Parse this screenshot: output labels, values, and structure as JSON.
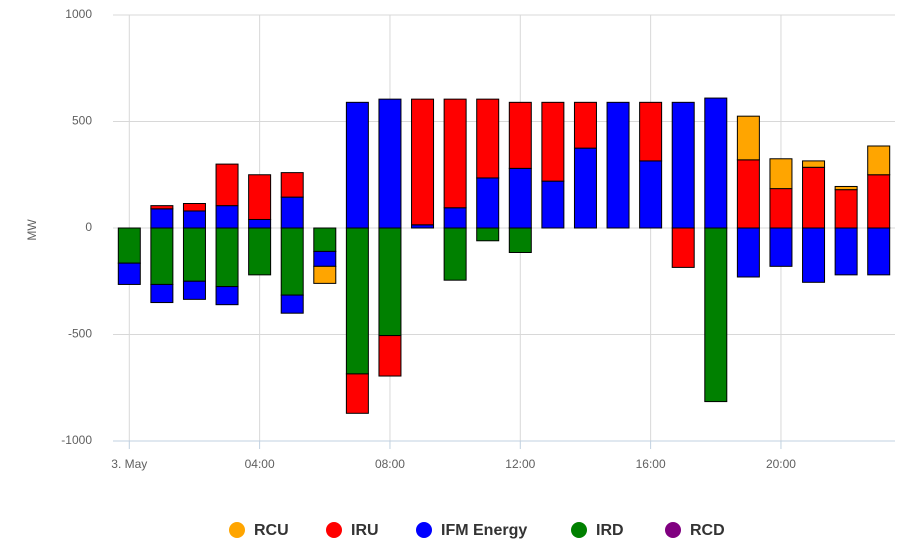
{
  "chart_data": {
    "type": "bar",
    "stacking": "normal",
    "y_label": "MW",
    "categories": [
      "3. May",
      null,
      null,
      null,
      "04:00",
      null,
      null,
      null,
      "08:00",
      null,
      null,
      null,
      "12:00",
      null,
      null,
      null,
      "16:00",
      null,
      null,
      null,
      "20:00",
      null,
      null,
      null
    ],
    "ylim": [
      -1000,
      1000
    ],
    "yticks": [
      -1000,
      -500,
      0,
      500,
      1000
    ],
    "grid": true,
    "legend": "bottom",
    "series": [
      {
        "name": "RCU",
        "color": "#ffa500",
        "values": [
          null,
          null,
          null,
          null,
          null,
          null,
          null,
          null,
          null,
          null,
          null,
          null,
          null,
          null,
          null,
          null,
          null,
          null,
          null,
          205,
          140,
          30,
          15,
          135
        ],
        "negative_values": [
          null,
          null,
          null,
          null,
          null,
          null,
          -80,
          null,
          null,
          null,
          null,
          null,
          null,
          null,
          null,
          null,
          null,
          null,
          null,
          null,
          null,
          null,
          null,
          null
        ]
      },
      {
        "name": "IRU",
        "color": "#ff0000",
        "values": [
          null,
          15,
          35,
          195,
          210,
          115,
          null,
          null,
          null,
          590,
          510,
          370,
          310,
          370,
          215,
          null,
          275,
          null,
          null,
          320,
          185,
          285,
          180,
          250
        ],
        "negative_values": [
          null,
          null,
          null,
          null,
          null,
          null,
          null,
          -185,
          -190,
          null,
          null,
          null,
          null,
          null,
          null,
          null,
          null,
          -185,
          null,
          null,
          null,
          null,
          null,
          null
        ]
      },
      {
        "name": "IFM Energy",
        "color": "#0000ff",
        "values": [
          null,
          90,
          80,
          105,
          40,
          145,
          null,
          590,
          605,
          15,
          95,
          235,
          280,
          220,
          375,
          590,
          315,
          590,
          610,
          null,
          null,
          null,
          null,
          null
        ],
        "negative_values": [
          -100,
          -85,
          -85,
          -85,
          null,
          -85,
          -70,
          null,
          null,
          null,
          null,
          null,
          null,
          null,
          null,
          null,
          null,
          null,
          null,
          -230,
          -180,
          -255,
          -220,
          -220
        ]
      },
      {
        "name": "IRD",
        "color": "#008000",
        "values": [
          null,
          null,
          null,
          null,
          null,
          null,
          null,
          null,
          null,
          null,
          null,
          null,
          null,
          null,
          null,
          null,
          null,
          null,
          null,
          null,
          null,
          null,
          null,
          null
        ],
        "negative_values": [
          -165,
          -265,
          -250,
          -275,
          -220,
          -315,
          -110,
          -685,
          -505,
          null,
          -245,
          -60,
          -115,
          null,
          null,
          null,
          null,
          null,
          -815,
          null,
          null,
          null,
          null,
          null
        ]
      },
      {
        "name": "RCD",
        "color": "#800080",
        "values": [
          null,
          null,
          null,
          null,
          null,
          null,
          null,
          null,
          null,
          null,
          null,
          null,
          null,
          null,
          null,
          null,
          null,
          null,
          null,
          null,
          null,
          null,
          null,
          null
        ],
        "negative_values": [
          null,
          null,
          null,
          null,
          null,
          null,
          null,
          null,
          null,
          null,
          null,
          null,
          null,
          null,
          null,
          null,
          null,
          null,
          null,
          null,
          null,
          null,
          null,
          null
        ]
      }
    ]
  }
}
